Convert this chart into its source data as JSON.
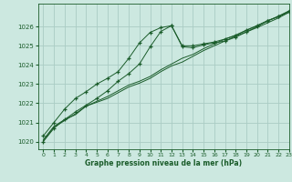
{
  "background_color": "#cce8e0",
  "grid_color": "#aaccc4",
  "line_color": "#1a5c2a",
  "title": "Graphe pression niveau de la mer (hPa)",
  "xlim": [
    -0.5,
    23
  ],
  "ylim": [
    1019.6,
    1027.2
  ],
  "yticks": [
    1020,
    1021,
    1022,
    1023,
    1024,
    1025,
    1026
  ],
  "xticks": [
    0,
    1,
    2,
    3,
    4,
    5,
    6,
    7,
    8,
    9,
    10,
    11,
    12,
    13,
    14,
    15,
    16,
    17,
    18,
    19,
    20,
    21,
    22,
    23
  ],
  "series1_x": [
    0,
    1,
    2,
    3,
    4,
    5,
    6,
    7,
    8,
    9,
    10,
    11,
    12,
    13,
    14,
    15,
    16,
    17,
    18,
    19,
    20,
    21,
    22,
    23
  ],
  "series1_y": [
    1020.1,
    1020.8,
    1021.15,
    1021.4,
    1021.85,
    1022.05,
    1022.25,
    1022.55,
    1022.85,
    1023.05,
    1023.3,
    1023.65,
    1023.95,
    1024.15,
    1024.45,
    1024.75,
    1025.0,
    1025.25,
    1025.5,
    1025.72,
    1025.95,
    1026.2,
    1026.45,
    1026.75
  ],
  "series2_x": [
    0,
    1,
    2,
    3,
    4,
    5,
    6,
    7,
    8,
    9,
    10,
    11,
    12,
    13,
    14,
    15,
    16,
    17,
    18,
    19,
    20,
    21,
    22,
    23
  ],
  "series2_y": [
    1020.05,
    1020.75,
    1021.1,
    1021.45,
    1021.85,
    1022.1,
    1022.35,
    1022.65,
    1022.95,
    1023.15,
    1023.4,
    1023.75,
    1024.05,
    1024.35,
    1024.55,
    1024.85,
    1025.1,
    1025.35,
    1025.55,
    1025.8,
    1026.05,
    1026.3,
    1026.55,
    1026.82
  ],
  "series3_x": [
    0,
    1,
    2,
    3,
    4,
    5,
    6,
    7,
    8,
    9,
    10,
    11,
    12,
    13,
    14,
    15,
    16,
    17,
    18,
    19,
    20,
    21,
    22,
    23
  ],
  "series3_y": [
    1020.3,
    1021.0,
    1021.7,
    1022.25,
    1022.6,
    1023.0,
    1023.3,
    1023.65,
    1024.35,
    1025.15,
    1025.7,
    1025.95,
    1026.05,
    1024.95,
    1024.9,
    1025.05,
    1025.15,
    1025.25,
    1025.45,
    1025.72,
    1026.0,
    1026.3,
    1026.52,
    1026.82
  ],
  "series4_x": [
    0,
    1,
    2,
    3,
    4,
    5,
    6,
    7,
    8,
    9,
    10,
    11,
    12,
    13,
    14,
    15,
    16,
    17,
    18,
    19,
    20,
    21,
    22,
    23
  ],
  "series4_y": [
    1020.0,
    1020.7,
    1021.15,
    1021.55,
    1021.9,
    1022.25,
    1022.65,
    1023.15,
    1023.55,
    1024.05,
    1024.95,
    1025.75,
    1026.05,
    1025.0,
    1025.0,
    1025.1,
    1025.2,
    1025.35,
    1025.55,
    1025.82,
    1026.05,
    1026.32,
    1026.52,
    1026.75
  ]
}
